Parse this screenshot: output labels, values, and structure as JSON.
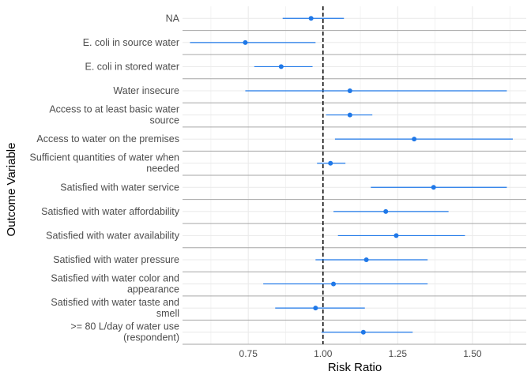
{
  "chart_data": {
    "type": "forest",
    "xlabel": "Risk Ratio",
    "ylabel": "Outcome Variable",
    "xlim": [
      0.53,
      1.68
    ],
    "xticks": [
      0.75,
      1.0,
      1.25,
      1.5
    ],
    "xtick_labels": [
      "0.75",
      "1.00",
      "1.25",
      "1.50"
    ],
    "reference_line": 1.0,
    "grid": true,
    "colors": {
      "point": "#1f78e8",
      "interval": "#1f78e8",
      "reference": "#000000",
      "separator": "#a6a6a6",
      "grid": "#ebebeb"
    },
    "rows": [
      {
        "label_lines": [
          "NA"
        ],
        "estimate": 0.96,
        "lower": 0.865,
        "upper": 1.07
      },
      {
        "label_lines": [
          "E. coli in source water"
        ],
        "estimate": 0.74,
        "lower": 0.555,
        "upper": 0.975
      },
      {
        "label_lines": [
          "E. coli in stored water"
        ],
        "estimate": 0.86,
        "lower": 0.77,
        "upper": 0.965
      },
      {
        "label_lines": [
          "Water insecure"
        ],
        "estimate": 1.09,
        "lower": 0.74,
        "upper": 1.615
      },
      {
        "label_lines": [
          "Access to at least basic water",
          "source"
        ],
        "estimate": 1.09,
        "lower": 1.01,
        "upper": 1.165
      },
      {
        "label_lines": [
          "Access to water on the premises"
        ],
        "estimate": 1.305,
        "lower": 1.04,
        "upper": 1.635
      },
      {
        "label_lines": [
          "Sufficient quantities of water when",
          "needed"
        ],
        "estimate": 1.025,
        "lower": 0.98,
        "upper": 1.075
      },
      {
        "label_lines": [
          "Satisfied with water service"
        ],
        "estimate": 1.37,
        "lower": 1.16,
        "upper": 1.615
      },
      {
        "label_lines": [
          "Satisfied with water affordability"
        ],
        "estimate": 1.21,
        "lower": 1.035,
        "upper": 1.42
      },
      {
        "label_lines": [
          "Satisfied with water availability"
        ],
        "estimate": 1.245,
        "lower": 1.05,
        "upper": 1.475
      },
      {
        "label_lines": [
          "Satisfied with water pressure"
        ],
        "estimate": 1.145,
        "lower": 0.975,
        "upper": 1.35
      },
      {
        "label_lines": [
          "Satisfied with water color and",
          "appearance"
        ],
        "estimate": 1.035,
        "lower": 0.8,
        "upper": 1.35
      },
      {
        "label_lines": [
          "Satisfied with water taste and",
          "smell"
        ],
        "estimate": 0.975,
        "lower": 0.84,
        "upper": 1.14
      },
      {
        "label_lines": [
          ">= 80 L/day of water use",
          "(respondent)"
        ],
        "estimate": 1.135,
        "lower": 0.995,
        "upper": 1.3
      }
    ]
  }
}
